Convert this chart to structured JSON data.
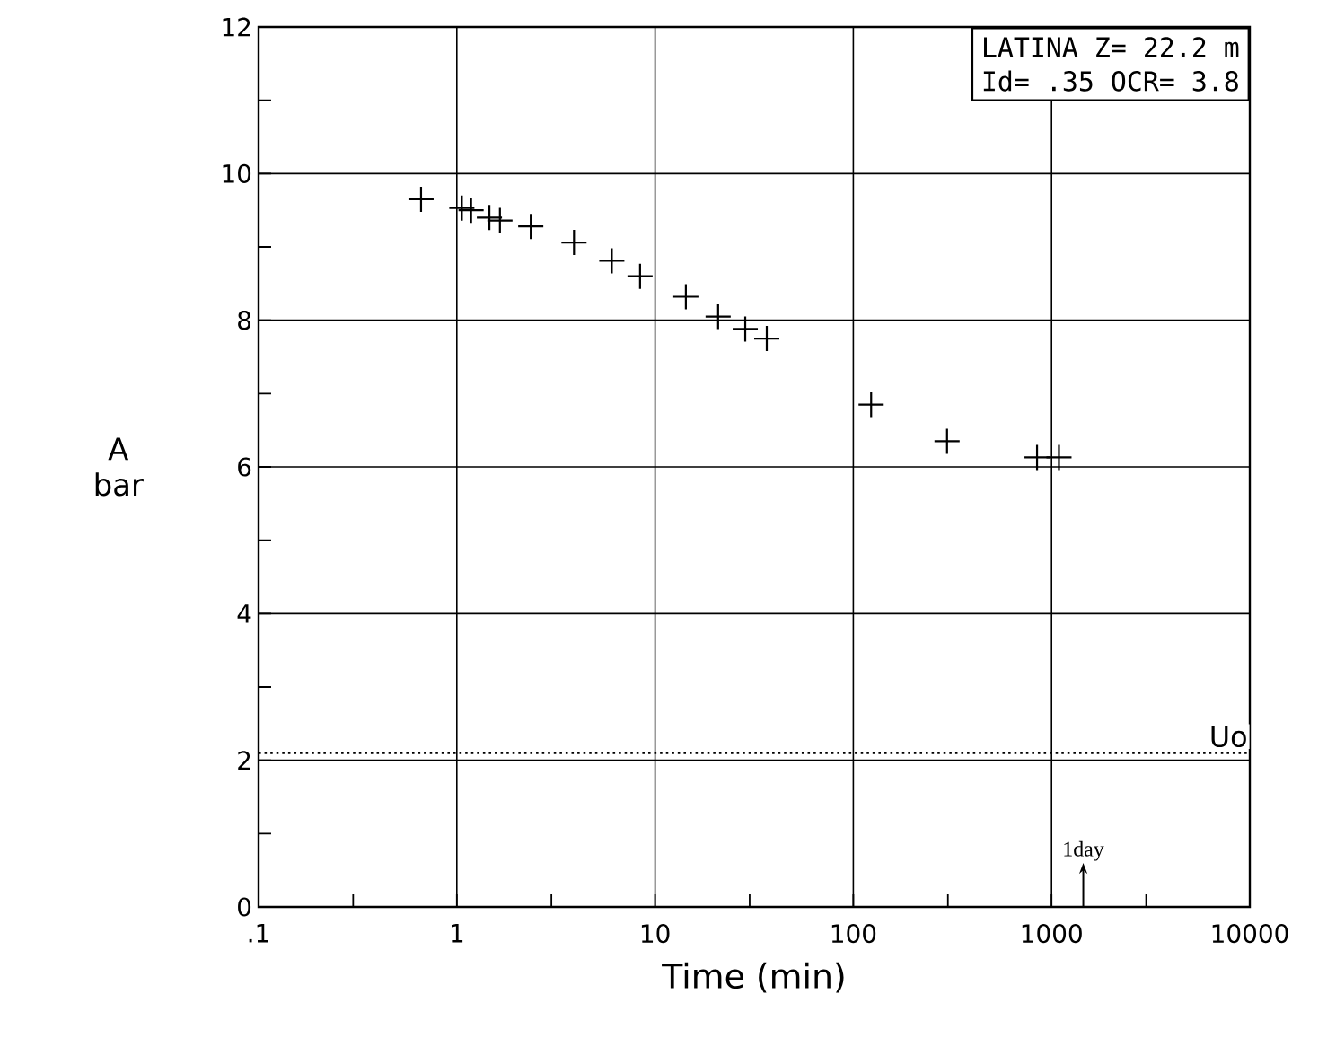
{
  "chart_data": {
    "type": "scatter",
    "xlabel": "Time (min)",
    "ylabel": "A bar",
    "log": "x",
    "grid": true,
    "marker": "cross",
    "xlim": [
      0.1,
      10000
    ],
    "ylim": [
      0,
      12
    ],
    "xticks": [
      {
        "value": 0.1,
        "label": ".1"
      },
      1,
      10,
      100,
      1000,
      10000,
      {
        "value": 0.3,
        "label": null
      },
      {
        "value": 3,
        "label": null
      },
      {
        "value": 30,
        "label": null
      },
      {
        "value": 300,
        "label": null
      },
      {
        "value": 3000,
        "label": null
      }
    ],
    "yticks": [
      0,
      2,
      4,
      6,
      8,
      10,
      12,
      {
        "value": 1,
        "label": null
      },
      {
        "value": 3,
        "label": null
      },
      {
        "value": 5,
        "label": null
      },
      {
        "value": 7,
        "label": null
      },
      {
        "value": 9,
        "label": null
      },
      {
        "value": 11,
        "label": null
      }
    ],
    "x": [
      0.66,
      1.06,
      1.18,
      1.46,
      1.65,
      2.36,
      3.9,
      6.05,
      8.4,
      14.3,
      20.8,
      28.5,
      36.6,
      123,
      297,
      845,
      1090
    ],
    "values": [
      9.65,
      9.53,
      9.5,
      9.4,
      9.36,
      9.28,
      9.06,
      8.81,
      8.6,
      8.32,
      8.05,
      7.88,
      7.75,
      6.85,
      6.35,
      6.13,
      6.13
    ],
    "color": "#000000",
    "ref_lines": [
      {
        "axis": "y",
        "value": 2.1,
        "label": "Uo",
        "line_style": "dotted"
      }
    ],
    "annotations": [
      "LATINA  Z= 22.2 m",
      "Id= .35  OCR= 3.8",
      "1day"
    ]
  }
}
